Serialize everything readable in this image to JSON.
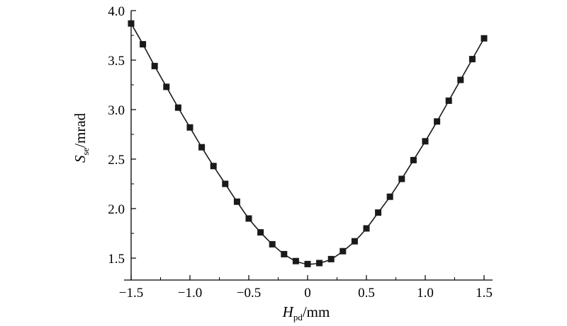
{
  "chart_data": {
    "type": "line",
    "title": "",
    "xlabel": {
      "main": "H",
      "sub": "pd",
      "unit": "/mm"
    },
    "ylabel": {
      "main": "S",
      "sub": "se",
      "unit": "/mrad"
    },
    "xlim": [
      -1.5,
      1.5
    ],
    "ylim": [
      1.35,
      4.0
    ],
    "x_ticks": [
      "−1.5",
      "−1.0",
      "−0.5",
      "0",
      "0.5",
      "1.0",
      "1.5"
    ],
    "x_tick_values": [
      -1.5,
      -1.0,
      -0.5,
      0,
      0.5,
      1.0,
      1.5
    ],
    "y_ticks": [
      "1.5",
      "2.0",
      "2.5",
      "3.0",
      "3.5",
      "4.0"
    ],
    "y_tick_values": [
      1.5,
      2.0,
      2.5,
      3.0,
      3.5,
      4.0
    ],
    "grid": false,
    "marker": "square",
    "color": "#1a1a1a",
    "series": [
      {
        "x": [
          -1.5,
          -1.4,
          -1.3,
          -1.2,
          -1.1,
          -1.0,
          -0.9,
          -0.8,
          -0.7,
          -0.6,
          -0.5,
          -0.4,
          -0.3,
          -0.2,
          -0.1,
          0.0,
          0.1,
          0.2,
          0.3,
          0.4,
          0.5,
          0.6,
          0.7,
          0.8,
          0.9,
          1.0,
          1.1,
          1.2,
          1.3,
          1.4,
          1.5
        ],
        "y": [
          3.87,
          3.66,
          3.44,
          3.23,
          3.02,
          2.82,
          2.62,
          2.43,
          2.25,
          2.07,
          1.9,
          1.76,
          1.64,
          1.54,
          1.47,
          1.44,
          1.45,
          1.49,
          1.57,
          1.67,
          1.8,
          1.96,
          2.12,
          2.3,
          2.49,
          2.68,
          2.88,
          3.09,
          3.3,
          3.51,
          3.72
        ]
      }
    ]
  }
}
